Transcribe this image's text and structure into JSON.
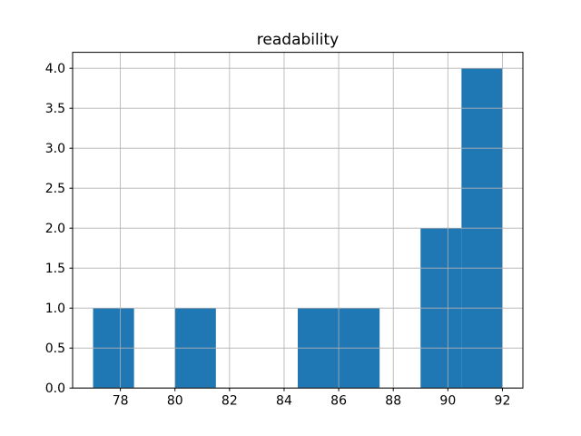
{
  "chart_data": {
    "type": "bar",
    "subtype": "histogram",
    "title": "readability",
    "xlabel": "",
    "ylabel": "",
    "bin_edges": [
      77,
      78.5,
      80,
      81.5,
      83,
      84.5,
      86,
      87.5,
      89,
      90.5,
      92
    ],
    "counts": [
      1,
      0,
      1,
      0,
      0,
      1,
      1,
      0,
      2,
      4
    ],
    "xticks": [
      78,
      80,
      82,
      84,
      86,
      88,
      90,
      92
    ],
    "xtick_labels": [
      "78",
      "80",
      "82",
      "84",
      "86",
      "88",
      "90",
      "92"
    ],
    "yticks": [
      0.0,
      0.5,
      1.0,
      1.5,
      2.0,
      2.5,
      3.0,
      3.5,
      4.0
    ],
    "ytick_labels": [
      "0.0",
      "0.5",
      "1.0",
      "1.5",
      "2.0",
      "2.5",
      "3.0",
      "3.5",
      "4.0"
    ],
    "xlim": [
      76.25,
      92.75
    ],
    "ylim": [
      0,
      4.2
    ],
    "grid": true,
    "grid_above_bars": true,
    "legend": false,
    "colors": {
      "bar": "#1f77b4",
      "grid": "#b0b0b0",
      "spine": "#000000",
      "background": "#ffffff",
      "text": "#000000"
    }
  }
}
